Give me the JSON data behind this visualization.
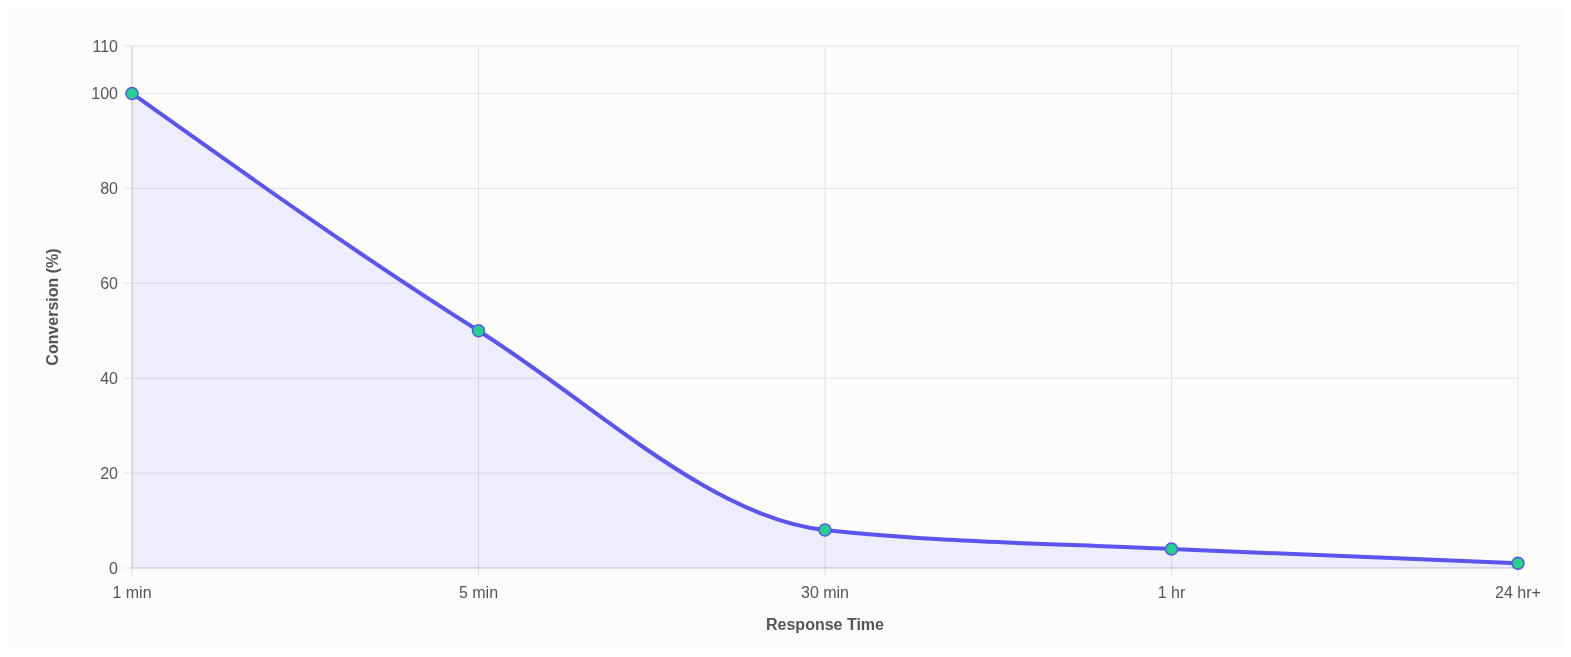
{
  "chart_data": {
    "type": "area",
    "xlabel": "Response Time",
    "ylabel": "Conversion (%)",
    "categories": [
      "1 min",
      "5 min",
      "30 min",
      "1 hr",
      "24 hr+"
    ],
    "series": [
      {
        "color": "#5a55ee",
        "values": [
          100,
          50,
          8,
          4,
          1
        ]
      }
    ],
    "ylim": [
      0,
      110
    ],
    "yticks": [
      0,
      20,
      40,
      60,
      80,
      100,
      110
    ],
    "grid": true,
    "marker": "circle"
  }
}
